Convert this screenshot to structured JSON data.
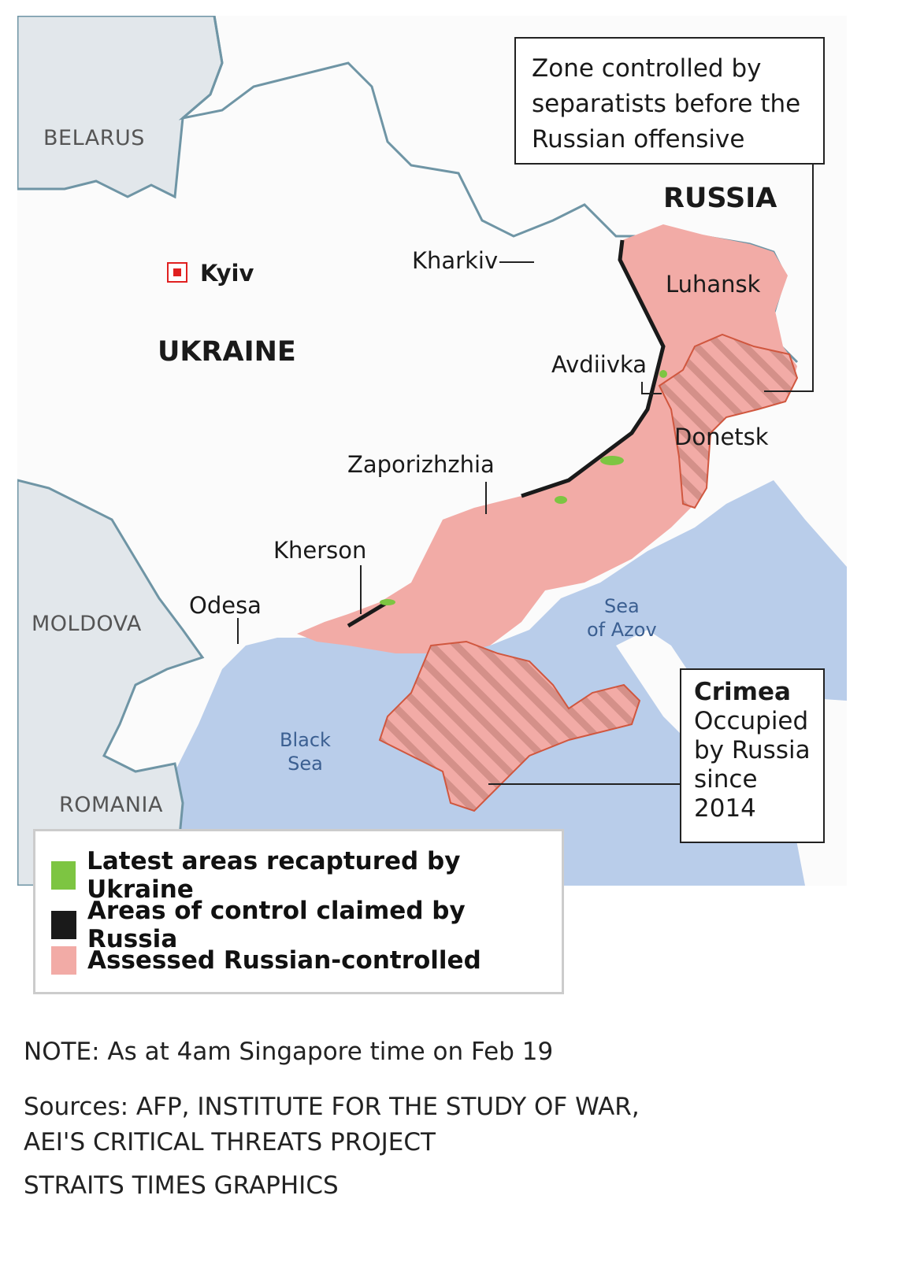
{
  "map": {
    "countries": {
      "belarus": "BELARUS",
      "russia": "RUSSIA",
      "ukraine": "UKRAINE",
      "moldova": "MOLDOVA",
      "romania": "ROMANIA"
    },
    "capital": "Kyiv",
    "cities": {
      "kharkiv": "Kharkiv",
      "avdiivka": "Avdiivka",
      "zaporizhzhia": "Zaporizhzhia",
      "kherson": "Kherson",
      "odesa": "Odesa"
    },
    "regions": {
      "luhansk": "Luhansk",
      "donetsk": "Donetsk"
    },
    "seas": {
      "azov_1": "Sea",
      "azov_2": "of Azov",
      "black_1": "Black",
      "black_2": "Sea"
    },
    "colors": {
      "land": "#fbfbfb",
      "neighbors": "#e2e7eb",
      "sea": "#b9cdea",
      "russian_controlled": "#f2aba6",
      "border": "#6f95a5",
      "recaptured": "#7dc542",
      "claimed": "#1a1a1a",
      "occupied_outline": "#d0573f"
    }
  },
  "callouts": {
    "separatists": "Zone controlled by separatists before the Russian offensive",
    "crimea_title": "Crimea",
    "crimea_text": "Occupied by Russia since 2014"
  },
  "legend": [
    {
      "label": "Latest areas recaptured by Ukraine",
      "color": "#7dc542"
    },
    {
      "label": "Areas of control claimed by Russia",
      "color": "#1a1a1a"
    },
    {
      "label": "Assessed Russian-controlled",
      "color": "#f2aba6"
    }
  ],
  "footer": {
    "note": "NOTE: As at 4am Singapore time on Feb 19",
    "sources_1": "Sources: AFP, INSTITUTE FOR THE STUDY OF WAR,",
    "sources_2": "AEI'S CRITICAL THREATS PROJECT",
    "credit": "STRAITS TIMES GRAPHICS"
  }
}
